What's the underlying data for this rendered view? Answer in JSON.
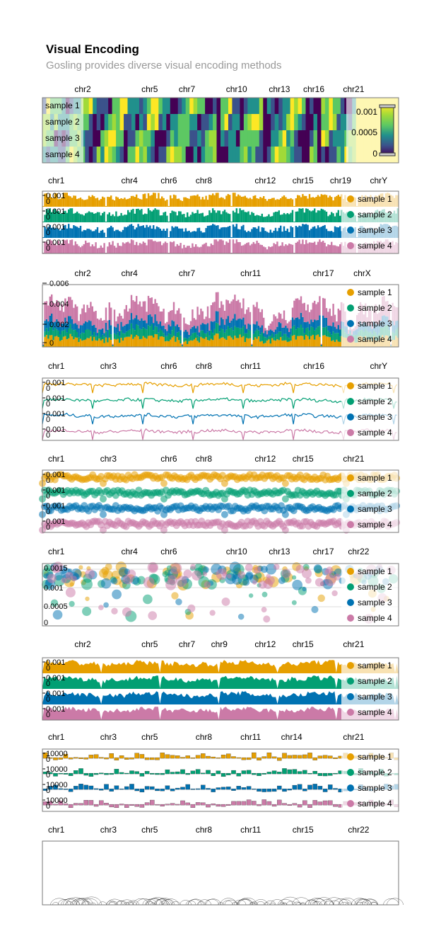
{
  "title": "Visual Encoding",
  "subtitle": "Gosling provides diverse visual encoding methods",
  "colors": {
    "sample1": "#e69f00",
    "sample2": "#029f73",
    "sample3": "#0072b2",
    "sample4": "#cb7aa7",
    "frame": "#777777",
    "grid": "#dddddd"
  },
  "chart_data": [
    {
      "type": "heatmap",
      "name": "heatmap",
      "chrom_labels": [
        "chr2",
        "chr5",
        "chr7",
        "chr10",
        "chr13",
        "chr16",
        "chr21"
      ],
      "rows": [
        "sample 1",
        "sample 2",
        "sample 3",
        "sample 4"
      ],
      "colorbar_ticks": [
        "0.001",
        "0.0005",
        "0"
      ],
      "colorscale": "viridis",
      "value_range": [
        0,
        0.0012
      ]
    },
    {
      "type": "bar",
      "name": "bar-rows",
      "chrom_labels": [
        "chr1",
        "chr4",
        "chr6",
        "chr8",
        "chr12",
        "chr15",
        "chr19",
        "chrY"
      ],
      "legend": [
        "sample 1",
        "sample 2",
        "sample 3",
        "sample 4"
      ],
      "row_ticks": [
        "0.001",
        "0"
      ],
      "ylim": [
        0,
        0.0012
      ]
    },
    {
      "type": "bar",
      "name": "stacked-bar",
      "chrom_labels": [
        "chr2",
        "chr4",
        "chr7",
        "chr11",
        "chr17",
        "chrX"
      ],
      "legend": [
        "sample 1",
        "sample 2",
        "sample 3",
        "sample 4"
      ],
      "y_ticks": [
        "0.006",
        "0.004",
        "0.002",
        "0"
      ],
      "ylim": [
        0,
        0.006
      ]
    },
    {
      "type": "line",
      "name": "line-rows",
      "chrom_labels": [
        "chr1",
        "chr3",
        "chr6",
        "chr8",
        "chr11",
        "chr16",
        "chrY"
      ],
      "legend": [
        "sample 1",
        "sample 2",
        "sample 3",
        "sample 4"
      ],
      "row_ticks": [
        "0.001",
        "0"
      ],
      "ylim": [
        0,
        0.0012
      ]
    },
    {
      "type": "scatter",
      "name": "point-rows",
      "chrom_labels": [
        "chr1",
        "chr3",
        "chr6",
        "chr8",
        "chr12",
        "chr15",
        "chr21"
      ],
      "legend": [
        "sample 1",
        "sample 2",
        "sample 3",
        "sample 4"
      ],
      "row_ticks": [
        "0.001",
        "0"
      ],
      "ylim": [
        0,
        0.0012
      ]
    },
    {
      "type": "scatter",
      "name": "overlaid-points",
      "chrom_labels": [
        "chr1",
        "chr4",
        "chr6",
        "chr10",
        "chr13",
        "chr17",
        "chr22"
      ],
      "legend": [
        "sample 1",
        "sample 2",
        "sample 3",
        "sample 4"
      ],
      "y_ticks": [
        "0.0015",
        "0.001",
        "0.0005",
        "0"
      ],
      "ylim": [
        0,
        0.0017
      ]
    },
    {
      "type": "area",
      "name": "area-rows",
      "chrom_labels": [
        "chr2",
        "chr5",
        "chr7",
        "chr9",
        "chr12",
        "chr15",
        "chr21"
      ],
      "legend": [
        "sample 1",
        "sample 2",
        "sample 3",
        "sample 4"
      ],
      "row_ticks": [
        "0.001",
        "0"
      ],
      "ylim": [
        0,
        0.0012
      ]
    },
    {
      "type": "bar",
      "name": "diverging-bars",
      "chrom_labels": [
        "chr1",
        "chr3",
        "chr5",
        "chr8",
        "chr11",
        "chr14",
        "chr21"
      ],
      "legend": [
        "sample 1",
        "sample 2",
        "sample 3",
        "sample 4"
      ],
      "row_ticks": [
        "10000",
        "0"
      ],
      "ylim": [
        -10000,
        10000
      ]
    },
    {
      "type": "scatter",
      "name": "arcs",
      "chrom_labels": [
        "chr1",
        "chr3",
        "chr5",
        "chr8",
        "chr11",
        "chr15",
        "chr22"
      ],
      "legend": []
    }
  ]
}
